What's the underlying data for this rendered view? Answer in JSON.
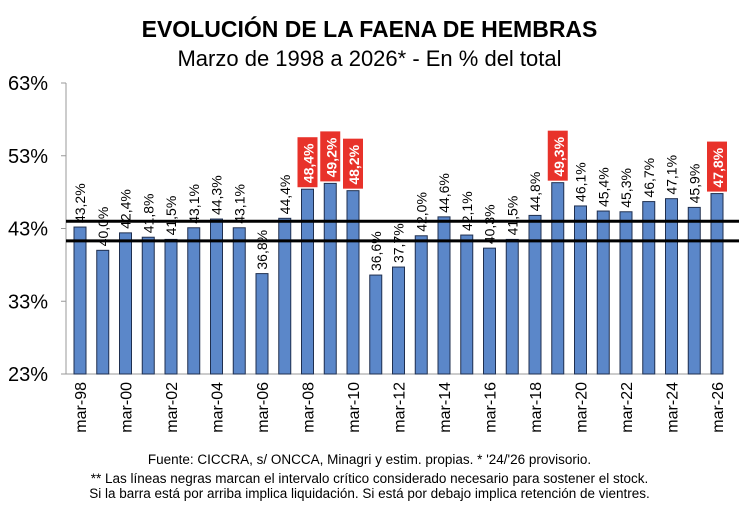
{
  "chart_data": {
    "type": "bar",
    "title": "EVOLUCIÓN DE LA FAENA DE HEMBRAS",
    "subtitle": "Marzo de 1998 a 2026* - En % del total",
    "xlabel": "",
    "ylabel": "",
    "ylim": [
      23,
      63
    ],
    "yticks": [
      "23%",
      "33%",
      "43%",
      "53%",
      "63%"
    ],
    "ytick_values": [
      23,
      33,
      43,
      53,
      63
    ],
    "categories": [
      "mar-98",
      "mar-99",
      "mar-00",
      "mar-01",
      "mar-02",
      "mar-03",
      "mar-04",
      "mar-05",
      "mar-06",
      "mar-07",
      "mar-08",
      "mar-09",
      "mar-10",
      "mar-11",
      "mar-12",
      "mar-13",
      "mar-14",
      "mar-15",
      "mar-16",
      "mar-17",
      "mar-18",
      "mar-19",
      "mar-20",
      "mar-21",
      "mar-22",
      "mar-23",
      "mar-24",
      "mar-25",
      "mar-26"
    ],
    "xtick_labels": [
      "mar-98",
      "mar-00",
      "mar-02",
      "mar-04",
      "mar-06",
      "mar-08",
      "mar-10",
      "mar-12",
      "mar-14",
      "mar-16",
      "mar-18",
      "mar-20",
      "mar-22",
      "mar-24",
      "mar-26"
    ],
    "values": [
      43.2,
      40.0,
      42.4,
      41.8,
      41.5,
      43.1,
      44.3,
      43.1,
      36.8,
      44.4,
      48.4,
      49.2,
      48.2,
      36.6,
      37.7,
      42.0,
      44.6,
      42.1,
      40.3,
      41.5,
      44.8,
      49.3,
      46.1,
      45.4,
      45.3,
      46.7,
      47.1,
      45.9,
      47.8
    ],
    "data_labels": [
      "43,2%",
      "40,0%",
      "42,4%",
      "41,8%",
      "41,5%",
      "43,1%",
      "44,3%",
      "43,1%",
      "36,8%",
      "44,4%",
      "48,4%",
      "49,2%",
      "48,2%",
      "36,6%",
      "37,7%",
      "42,0%",
      "44,6%",
      "42,1%",
      "40,3%",
      "41,5%",
      "44,8%",
      "49,3%",
      "46,1%",
      "45,4%",
      "45,3%",
      "46,7%",
      "47,1%",
      "45,9%",
      "47,8%"
    ],
    "highlighted": [
      "mar-08",
      "mar-09",
      "mar-10",
      "mar-19",
      "mar-26"
    ],
    "reference_lines": [
      44.0,
      41.3
    ],
    "grid": false,
    "colors": {
      "bar": "#5b87c9",
      "bar_border": "#1f2f4f",
      "highlight": "#e8322a",
      "reference_line": "#000000"
    }
  },
  "footer": {
    "source": "Fuente: CICCRA, s/ ONCCA, Minagri y estim. propias. * '24/'26  provisorio.",
    "note1": "** Las líneas negras marcan el intervalo crítico considerado necesario para sostener el stock.",
    "note2": "Si la barra está por arriba implica liquidación. Si está por debajo implica retención de vientres."
  }
}
